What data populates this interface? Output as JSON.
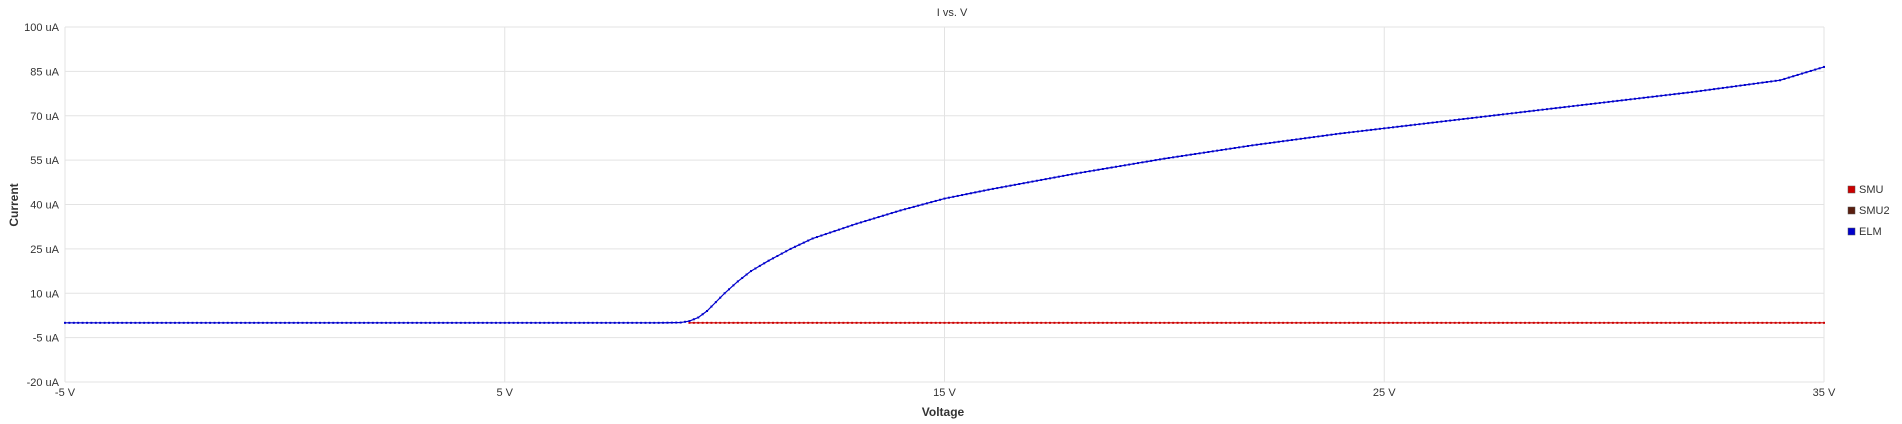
{
  "chart_data": {
    "type": "line",
    "title": "I vs. V",
    "xlabel": "Voltage",
    "ylabel": "Current",
    "xlim": [
      -5,
      35
    ],
    "ylim": [
      -20,
      100
    ],
    "x_ticks": [
      -5,
      5,
      15,
      25,
      35
    ],
    "x_tick_labels": [
      "-5 V",
      "5 V",
      "15 V",
      "25 V",
      "35 V"
    ],
    "y_ticks": [
      -20,
      -5,
      10,
      25,
      40,
      55,
      70,
      85,
      100
    ],
    "y_tick_labels": [
      "-20 uA",
      "-5 uA",
      "10 uA",
      "25 uA",
      "40 uA",
      "55 uA",
      "70 uA",
      "85 uA",
      "100 uA"
    ],
    "grid": true,
    "legend_position": "right",
    "series": [
      {
        "name": "SMU",
        "color": "#cc0000",
        "x": [
          9.2,
          10,
          12,
          14,
          16,
          18,
          20,
          22,
          24,
          26,
          28,
          30,
          32,
          34,
          35
        ],
        "y": [
          0,
          0,
          0,
          0,
          0,
          0,
          0,
          0,
          0,
          0,
          0,
          0,
          0,
          0,
          0
        ]
      },
      {
        "name": "SMU2",
        "color": "#5a1e0f",
        "x": [],
        "y": []
      },
      {
        "name": "ELM",
        "color": "#0000cc",
        "x": [
          -5,
          -3,
          -1,
          1,
          3,
          5,
          7,
          8,
          8.5,
          9,
          9.2,
          9.4,
          9.6,
          9.8,
          10,
          10.3,
          10.6,
          11,
          11.5,
          12,
          12.5,
          13,
          14,
          15,
          16,
          18,
          20,
          22,
          24,
          26,
          28,
          30,
          32,
          34,
          35
        ],
        "y": [
          0,
          0,
          0,
          0,
          0,
          0,
          0,
          0,
          0,
          0.1,
          0.6,
          1.8,
          4,
          7,
          10,
          14,
          17.5,
          21,
          25,
          28.5,
          31,
          33.5,
          38,
          42,
          45,
          50.5,
          55.5,
          60,
          64,
          67.5,
          71,
          74.5,
          78,
          82,
          86.5
        ]
      }
    ]
  }
}
